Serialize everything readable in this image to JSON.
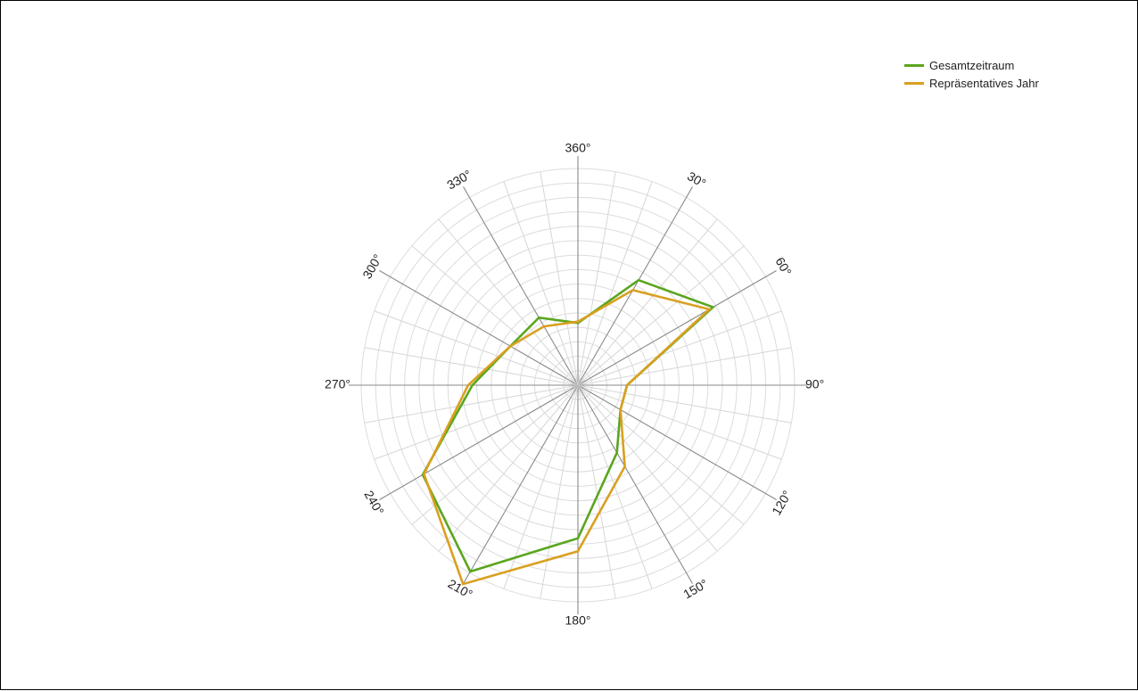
{
  "chart_data": {
    "type": "radar",
    "angle_ticks": [
      "360°",
      "30°",
      "60°",
      "90°",
      "120°",
      "150°",
      "180°",
      "210°",
      "240°",
      "270°",
      "300°",
      "330°"
    ],
    "angles_deg": [
      0,
      30,
      60,
      90,
      120,
      150,
      180,
      210,
      240,
      270,
      300,
      330
    ],
    "rlim": [
      0,
      15
    ],
    "grid_rings": 15,
    "grid_spokes": 36,
    "grid": true,
    "legend_position": "top-right",
    "series": [
      {
        "name": "Gesamtzeitraum",
        "color": "#5aa61e",
        "values": [
          4.3,
          8.4,
          10.8,
          3.4,
          3.4,
          5.4,
          10.6,
          14.9,
          12.4,
          7.3,
          5.4,
          5.4
        ]
      },
      {
        "name": "Repräsentatives Jahr",
        "color": "#d9a020",
        "values": [
          4.4,
          7.6,
          10.5,
          3.4,
          3.4,
          6.5,
          11.5,
          15.9,
          12.3,
          7.6,
          5.4,
          4.7
        ]
      }
    ]
  }
}
